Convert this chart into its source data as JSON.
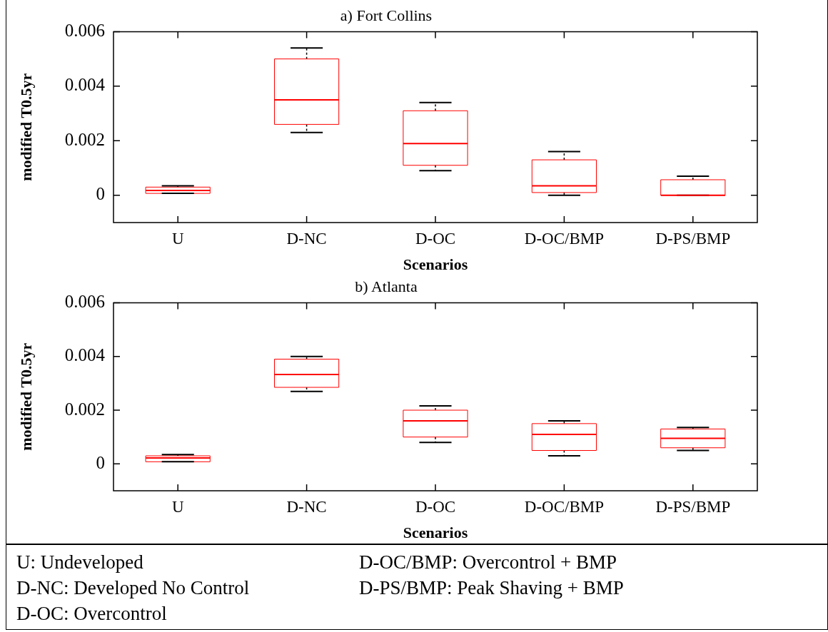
{
  "chart_data": [
    {
      "type": "box",
      "title": "a) Fort Collins",
      "xlabel": "Scenarios",
      "ylabel": "modified T0.5yr",
      "categories": [
        "U",
        "D-NC",
        "D-OC",
        "D-OC/BMP",
        "D-PS/BMP"
      ],
      "color": "#ff0000",
      "ylim": [
        -0.001,
        0.006
      ],
      "yticks": [
        0,
        0.002,
        0.004,
        0.006
      ],
      "legend": false,
      "boxes": [
        {
          "low": 7e-05,
          "q1": 7e-05,
          "median": 0.00018,
          "q3": 0.0003,
          "high": 0.00035
        },
        {
          "low": 0.0023,
          "q1": 0.0026,
          "median": 0.0035,
          "q3": 0.005,
          "high": 0.0054
        },
        {
          "low": 0.0009,
          "q1": 0.0011,
          "median": 0.0019,
          "q3": 0.0031,
          "high": 0.0034
        },
        {
          "low": 0,
          "q1": 0.0001,
          "median": 0.00035,
          "q3": 0.0013,
          "high": 0.0016
        },
        {
          "low": 0,
          "q1": 0,
          "median": 0,
          "q3": 0.00057,
          "high": 0.0007
        }
      ]
    },
    {
      "type": "box",
      "title": "b) Atlanta",
      "xlabel": "Scenarios",
      "ylabel": "modified T0.5yr",
      "categories": [
        "U",
        "D-NC",
        "D-OC",
        "D-OC/BMP",
        "D-PS/BMP"
      ],
      "color": "#ff0000",
      "ylim": [
        -0.001,
        0.006
      ],
      "yticks": [
        0,
        0.002,
        0.004,
        0.006
      ],
      "legend": false,
      "boxes": [
        {
          "low": 8e-05,
          "q1": 8e-05,
          "median": 0.00022,
          "q3": 0.0003,
          "high": 0.00035
        },
        {
          "low": 0.0027,
          "q1": 0.00285,
          "median": 0.00333,
          "q3": 0.0039,
          "high": 0.004
        },
        {
          "low": 0.0008,
          "q1": 0.001,
          "median": 0.0016,
          "q3": 0.002,
          "high": 0.00216
        },
        {
          "low": 0.0003,
          "q1": 0.0005,
          "median": 0.0011,
          "q3": 0.0015,
          "high": 0.0016
        },
        {
          "low": 0.0005,
          "q1": 0.0006,
          "median": 0.00095,
          "q3": 0.0013,
          "high": 0.00136
        }
      ],
      "annotations": [
        "U: Undeveloped",
        "D-NC: Developed No Control",
        "D-OC: Overcontrol",
        "D-OC/BMP: Overcontrol + BMP",
        "D-PS/BMP: Peak Shaving + BMP"
      ]
    }
  ]
}
